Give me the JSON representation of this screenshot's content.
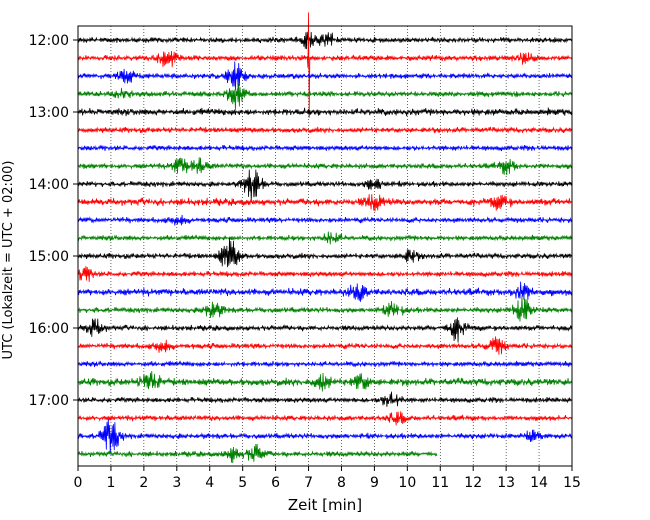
{
  "chart_data": {
    "type": "line",
    "title": "",
    "xlabel": "Zeit  [min]",
    "ylabel": "UTC (Lokalzeit = UTC + 02:00)",
    "xlim": [
      0,
      15
    ],
    "x_ticks": [
      "0",
      "1",
      "2",
      "3",
      "4",
      "5",
      "6",
      "7",
      "8",
      "9",
      "10",
      "11",
      "12",
      "13",
      "14",
      "15"
    ],
    "y_ticks": [
      "12:00",
      "13:00",
      "14:00",
      "15:00",
      "16:00",
      "17:00"
    ],
    "grid": "vertical dotted",
    "trace_colors": [
      "#000000",
      "#ff0000",
      "#0000ff",
      "#008000"
    ],
    "trace_count": 24,
    "trace_interval_min": 15,
    "first_trace": "12:00",
    "last_trace_end_min": 10.9,
    "events": [
      {
        "trace": 0,
        "x": 7.0,
        "amp": 0.6
      },
      {
        "trace": 0,
        "x": 7.6,
        "amp": 0.5
      },
      {
        "trace": 1,
        "x": 2.7,
        "amp": 0.7
      },
      {
        "trace": 1,
        "x": 7.0,
        "amp": 3.4
      },
      {
        "trace": 1,
        "x": 13.5,
        "amp": 0.5
      },
      {
        "trace": 2,
        "x": 1.5,
        "amp": 0.5
      },
      {
        "trace": 2,
        "x": 4.8,
        "amp": 0.9
      },
      {
        "trace": 3,
        "x": 4.8,
        "amp": 1.0
      },
      {
        "trace": 3,
        "x": 1.3,
        "amp": 0.3
      },
      {
        "trace": 7,
        "x": 3.1,
        "amp": 0.5
      },
      {
        "trace": 7,
        "x": 3.7,
        "amp": 0.5
      },
      {
        "trace": 7,
        "x": 13.0,
        "amp": 0.5
      },
      {
        "trace": 8,
        "x": 5.3,
        "amp": 1.1
      },
      {
        "trace": 8,
        "x": 9.0,
        "amp": 0.4
      },
      {
        "trace": 9,
        "x": 9.0,
        "amp": 0.5
      },
      {
        "trace": 9,
        "x": 12.8,
        "amp": 0.4
      },
      {
        "trace": 10,
        "x": 3.1,
        "amp": 0.3
      },
      {
        "trace": 11,
        "x": 7.7,
        "amp": 0.4
      },
      {
        "trace": 12,
        "x": 4.6,
        "amp": 1.2
      },
      {
        "trace": 12,
        "x": 10.1,
        "amp": 0.4
      },
      {
        "trace": 13,
        "x": 0.2,
        "amp": 0.5
      },
      {
        "trace": 14,
        "x": 8.5,
        "amp": 0.6
      },
      {
        "trace": 14,
        "x": 13.5,
        "amp": 0.6
      },
      {
        "trace": 15,
        "x": 4.1,
        "amp": 0.6
      },
      {
        "trace": 15,
        "x": 9.6,
        "amp": 0.6
      },
      {
        "trace": 15,
        "x": 13.5,
        "amp": 0.9
      },
      {
        "trace": 16,
        "x": 0.5,
        "amp": 0.6
      },
      {
        "trace": 16,
        "x": 11.5,
        "amp": 0.9
      },
      {
        "trace": 17,
        "x": 12.7,
        "amp": 0.6
      },
      {
        "trace": 17,
        "x": 2.6,
        "amp": 0.4
      },
      {
        "trace": 19,
        "x": 2.2,
        "amp": 0.8
      },
      {
        "trace": 19,
        "x": 7.4,
        "amp": 0.5
      },
      {
        "trace": 19,
        "x": 8.6,
        "amp": 0.5
      },
      {
        "trace": 20,
        "x": 9.5,
        "amp": 0.6
      },
      {
        "trace": 21,
        "x": 9.7,
        "amp": 0.4
      },
      {
        "trace": 22,
        "x": 1.0,
        "amp": 1.2
      },
      {
        "trace": 22,
        "x": 13.8,
        "amp": 0.3
      },
      {
        "trace": 23,
        "x": 5.4,
        "amp": 0.6
      },
      {
        "trace": 23,
        "x": 4.7,
        "amp": 0.5
      }
    ]
  }
}
